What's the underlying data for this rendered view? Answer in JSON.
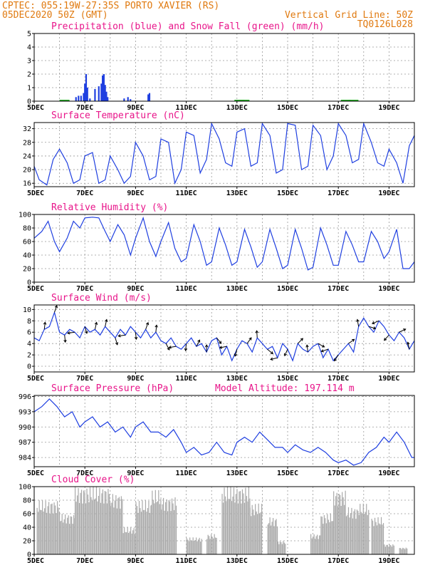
{
  "header": {
    "line1_left": "CPTEC:   055:19W-27:35S  PORTO XAVIER (RS)",
    "line2_left": "05DEC2020 50Z (GMT)",
    "line1_right": "Vertical Grid Line: 50Z",
    "line2_right": "TQ0126L028"
  },
  "colors": {
    "header": "#e07a10",
    "title": "#e8158a",
    "series": "#1f3fe0",
    "snow": "#22aa22",
    "cloud": "#a9a9a9",
    "wind_arrow": "#000000"
  },
  "chart_data": [
    {
      "type": "bar",
      "title": "Precipitation (blue) and Snow Fall (green) (mm/h)",
      "x_ticks": [
        "5DEC",
        "7DEC",
        "9DEC",
        "11DEC",
        "13DEC",
        "15DEC",
        "17DEC",
        "19DEC"
      ],
      "y_ticks": [
        "0",
        "1",
        "2",
        "3",
        "4",
        "5"
      ],
      "ylim": [
        0,
        5
      ],
      "xlim_days": [
        5,
        20
      ],
      "series": [
        {
          "values_x": [
            6.65,
            6.75,
            6.85,
            6.95,
            7.0,
            7.05,
            7.1,
            7.2,
            7.4,
            7.55,
            7.65,
            7.7,
            7.75,
            7.8,
            7.85,
            7.9,
            8.55,
            8.7,
            8.8,
            9.5,
            9.55
          ],
          "values": [
            0.3,
            0.4,
            0.4,
            0.6,
            1.3,
            2.0,
            1.0,
            0.2,
            0.9,
            1.1,
            1.3,
            1.9,
            2.0,
            1.2,
            0.7,
            0.3,
            0.2,
            0.3,
            0.15,
            0.5,
            0.6
          ]
        }
      ],
      "snow_x": [
        6.0,
        12.9,
        13.1,
        17.1,
        17.4
      ],
      "snow_values": [
        0.05,
        0.05,
        0.05,
        0.05,
        0.05
      ]
    },
    {
      "type": "line",
      "title": "Surface Temperature (nC)",
      "x_ticks": [
        "5DEC",
        "7DEC",
        "9DEC",
        "11DEC",
        "13DEC",
        "15DEC",
        "17DEC",
        "19DEC"
      ],
      "y_ticks": [
        "16",
        "20",
        "24",
        "28",
        "32"
      ],
      "ylim": [
        15,
        33.8
      ],
      "xlim_days": [
        5,
        20
      ],
      "x": [
        5.0,
        5.2,
        5.5,
        5.75,
        6.0,
        6.3,
        6.55,
        6.8,
        7.0,
        7.3,
        7.55,
        7.8,
        8.0,
        8.3,
        8.55,
        8.8,
        9.0,
        9.3,
        9.55,
        9.8,
        10.0,
        10.3,
        10.55,
        10.8,
        11.0,
        11.3,
        11.55,
        11.8,
        12.0,
        12.3,
        12.55,
        12.8,
        13.0,
        13.3,
        13.55,
        13.8,
        14.0,
        14.3,
        14.55,
        14.8,
        15.0,
        15.3,
        15.55,
        15.8,
        16.0,
        16.3,
        16.55,
        16.8,
        17.0,
        17.3,
        17.55,
        17.8,
        18.0,
        18.3,
        18.55,
        18.8,
        19.0,
        19.3,
        19.55,
        19.8,
        20.0
      ],
      "values": [
        21,
        17,
        15.5,
        23,
        26,
        22,
        16,
        17,
        24,
        25,
        16,
        17,
        24,
        20,
        16,
        18,
        28,
        24,
        17,
        18,
        29,
        28,
        16,
        20,
        31,
        30,
        19,
        23,
        33.5,
        29,
        22,
        21,
        31,
        32,
        21,
        22,
        33.5,
        30,
        19,
        20,
        33.5,
        33,
        20,
        21,
        33,
        30,
        20,
        24,
        33.5,
        30,
        22,
        23,
        33.5,
        28,
        22,
        21,
        26,
        22,
        16,
        27,
        30
      ]
    },
    {
      "type": "line",
      "title": "Relative Humidity (%)",
      "x_ticks": [
        "5DEC",
        "7DEC",
        "9DEC",
        "11DEC",
        "13DEC",
        "15DEC",
        "17DEC",
        "19DEC"
      ],
      "y_ticks": [
        "0",
        "20",
        "40",
        "60",
        "80",
        "100"
      ],
      "ylim": [
        0,
        100
      ],
      "xlim_days": [
        5,
        20
      ],
      "x": [
        5.0,
        5.3,
        5.55,
        5.8,
        6.0,
        6.3,
        6.55,
        6.8,
        7.0,
        7.3,
        7.55,
        7.8,
        8.0,
        8.3,
        8.55,
        8.8,
        9.0,
        9.3,
        9.55,
        9.8,
        10.0,
        10.3,
        10.55,
        10.8,
        11.0,
        11.3,
        11.55,
        11.8,
        12.0,
        12.3,
        12.55,
        12.8,
        13.0,
        13.3,
        13.55,
        13.8,
        14.0,
        14.3,
        14.55,
        14.8,
        15.0,
        15.3,
        15.55,
        15.8,
        16.0,
        16.3,
        16.55,
        16.8,
        17.0,
        17.3,
        17.55,
        17.8,
        18.0,
        18.3,
        18.55,
        18.8,
        19.0,
        19.3,
        19.55,
        19.8,
        20.0
      ],
      "values": [
        65,
        75,
        90,
        60,
        45,
        65,
        90,
        80,
        95,
        96,
        95,
        75,
        60,
        85,
        70,
        40,
        65,
        95,
        60,
        38,
        60,
        88,
        50,
        30,
        35,
        85,
        60,
        25,
        30,
        80,
        55,
        25,
        30,
        78,
        52,
        22,
        30,
        78,
        50,
        20,
        25,
        78,
        50,
        18,
        22,
        80,
        55,
        25,
        25,
        75,
        55,
        30,
        30,
        75,
        60,
        35,
        45,
        78,
        20,
        20,
        30
      ]
    },
    {
      "type": "line",
      "title": "Surface Wind (m/s)",
      "x_ticks": [
        "5DEC",
        "7DEC",
        "9DEC",
        "11DEC",
        "13DEC",
        "15DEC",
        "17DEC",
        "19DEC"
      ],
      "y_ticks": [
        "0",
        "2",
        "4",
        "6",
        "8",
        "10"
      ],
      "ylim": [
        -1,
        10.8
      ],
      "xlim_days": [
        5,
        20
      ],
      "x": [
        5.0,
        5.2,
        5.4,
        5.6,
        5.8,
        6.0,
        6.2,
        6.4,
        6.6,
        6.8,
        7.0,
        7.2,
        7.4,
        7.6,
        7.8,
        8.0,
        8.2,
        8.4,
        8.6,
        8.8,
        9.0,
        9.2,
        9.4,
        9.6,
        9.8,
        10.0,
        10.2,
        10.4,
        10.6,
        10.8,
        11.0,
        11.2,
        11.4,
        11.6,
        11.8,
        12.0,
        12.2,
        12.4,
        12.6,
        12.8,
        13.0,
        13.2,
        13.4,
        13.6,
        13.8,
        14.0,
        14.2,
        14.4,
        14.6,
        14.8,
        15.0,
        15.2,
        15.4,
        15.6,
        15.8,
        16.0,
        16.2,
        16.4,
        16.6,
        16.8,
        17.0,
        17.2,
        17.4,
        17.6,
        17.8,
        18.0,
        18.2,
        18.4,
        18.6,
        18.8,
        19.0,
        19.2,
        19.4,
        19.6,
        19.8,
        20.0
      ],
      "values": [
        5,
        4.5,
        6.5,
        7,
        9.5,
        6,
        5.5,
        6.5,
        6,
        5,
        7,
        6,
        6.5,
        5.5,
        7,
        6,
        5,
        6.5,
        5.5,
        7,
        6,
        5,
        6.5,
        5,
        6,
        4.5,
        4,
        5,
        3.5,
        3,
        4,
        5,
        3.5,
        4,
        2.5,
        4.5,
        5,
        2,
        3.5,
        1,
        3,
        4.5,
        4,
        2.5,
        5,
        4,
        3,
        3.5,
        1.5,
        4,
        3,
        1,
        4,
        3,
        2.5,
        3.5,
        4,
        1.5,
        3,
        1,
        2,
        3,
        4,
        2.5,
        7,
        8.5,
        7,
        6,
        8,
        7,
        5.5,
        4.5,
        6,
        5,
        3,
        4.5
      ]
    },
    {
      "type": "line",
      "title": "Surface Pressure (hPa)",
      "annotation": "Model Altitude: 197.114 m",
      "x_ticks": [
        "5DEC",
        "7DEC",
        "9DEC",
        "11DEC",
        "13DEC",
        "15DEC",
        "17DEC",
        "19DEC"
      ],
      "y_ticks": [
        "984",
        "987",
        "990",
        "993",
        "996"
      ],
      "ylim": [
        982.2,
        996.2
      ],
      "xlim_days": [
        5,
        20
      ],
      "x": [
        5.0,
        5.3,
        5.6,
        5.9,
        6.2,
        6.5,
        6.8,
        7.0,
        7.3,
        7.6,
        7.9,
        8.2,
        8.5,
        8.8,
        9.0,
        9.3,
        9.6,
        9.9,
        10.2,
        10.5,
        10.8,
        11.0,
        11.3,
        11.6,
        11.9,
        12.2,
        12.5,
        12.8,
        13.0,
        13.3,
        13.6,
        13.9,
        14.2,
        14.5,
        14.8,
        15.0,
        15.3,
        15.6,
        15.9,
        16.2,
        16.5,
        16.8,
        17.0,
        17.3,
        17.6,
        17.9,
        18.2,
        18.5,
        18.8,
        19.0,
        19.3,
        19.6,
        19.9,
        20.0
      ],
      "values": [
        993,
        994,
        995.5,
        994,
        992,
        993,
        990,
        991,
        992,
        990,
        991,
        989,
        990,
        988,
        990,
        991,
        989,
        989,
        988,
        989.5,
        987,
        985,
        986,
        984.5,
        985,
        987,
        985,
        984.5,
        987,
        988,
        987,
        989,
        987.5,
        986,
        986,
        985,
        986.5,
        985.5,
        985,
        986,
        985,
        983.5,
        983,
        983.5,
        982.5,
        983,
        985,
        986,
        988,
        987,
        989,
        987,
        984,
        984
      ]
    },
    {
      "type": "bar",
      "title": "Cloud Cover (%)",
      "x_ticks": [
        "5DEC",
        "7DEC",
        "9DEC",
        "11DEC",
        "13DEC",
        "15DEC",
        "17DEC",
        "19DEC"
      ],
      "y_ticks": [
        "0",
        "20",
        "40",
        "60",
        "80",
        "100"
      ],
      "ylim": [
        0,
        100
      ],
      "xlim_days": [
        5,
        20
      ],
      "segments": [
        {
          "from": 5.1,
          "to": 6.0,
          "value": 80
        },
        {
          "from": 6.0,
          "to": 6.6,
          "value": 60
        },
        {
          "from": 6.6,
          "to": 8.0,
          "value": 100
        },
        {
          "from": 8.0,
          "to": 8.5,
          "value": 90
        },
        {
          "from": 8.5,
          "to": 9.0,
          "value": 40
        },
        {
          "from": 9.0,
          "to": 9.6,
          "value": 80
        },
        {
          "from": 9.6,
          "to": 10.0,
          "value": 95
        },
        {
          "from": 10.0,
          "to": 10.6,
          "value": 85
        },
        {
          "from": 11.0,
          "to": 11.6,
          "value": 25
        },
        {
          "from": 11.8,
          "to": 12.2,
          "value": 30
        },
        {
          "from": 12.4,
          "to": 13.5,
          "value": 100
        },
        {
          "from": 13.5,
          "to": 14.0,
          "value": 75
        },
        {
          "from": 14.2,
          "to": 14.6,
          "value": 55
        },
        {
          "from": 14.6,
          "to": 14.9,
          "value": 20
        },
        {
          "from": 15.9,
          "to": 16.3,
          "value": 30
        },
        {
          "from": 16.3,
          "to": 16.8,
          "value": 60
        },
        {
          "from": 16.8,
          "to": 17.3,
          "value": 95
        },
        {
          "from": 17.3,
          "to": 17.8,
          "value": 70
        },
        {
          "from": 17.8,
          "to": 18.2,
          "value": 75
        },
        {
          "from": 18.3,
          "to": 18.8,
          "value": 55
        },
        {
          "from": 18.8,
          "to": 19.2,
          "value": 15
        },
        {
          "from": 19.4,
          "to": 19.7,
          "value": 10
        }
      ]
    }
  ]
}
